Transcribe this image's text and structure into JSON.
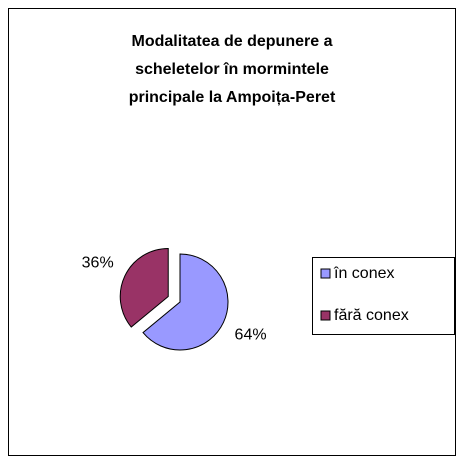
{
  "chart_data": {
    "type": "pie",
    "title": [
      "Modalitatea de depunere a",
      "scheletelor în mormintele",
      "principale la Ampoița-Peret"
    ],
    "categories": [
      "în conex",
      "fără conex"
    ],
    "values": [
      64,
      36
    ],
    "value_labels": [
      "64%",
      "36%"
    ],
    "colors": [
      "#9999ff",
      "#993366"
    ],
    "legend": "right"
  }
}
